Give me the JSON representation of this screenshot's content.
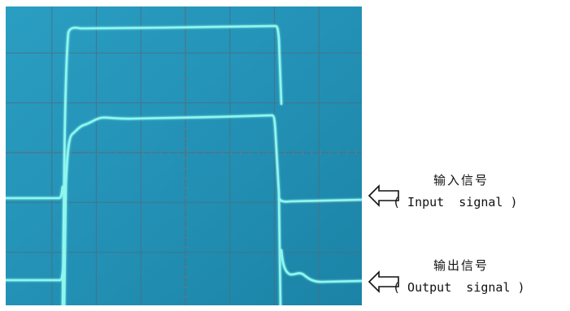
{
  "oscilloscope": {
    "screen_color": "#2596b8",
    "trace_color": "#7ff5ec",
    "traces": [
      {
        "label": "输入信号",
        "sublabel": "( Input  signal )"
      },
      {
        "label": "输出信号",
        "sublabel": "( Output  signal )"
      }
    ]
  }
}
